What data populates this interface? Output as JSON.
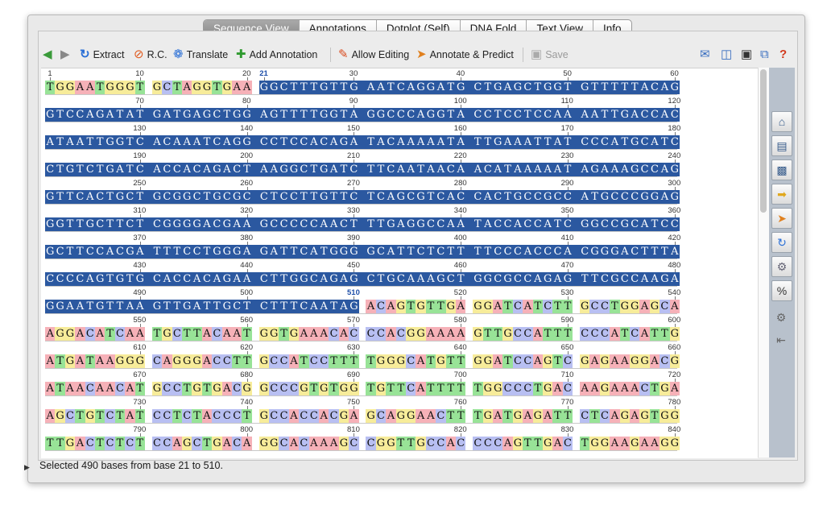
{
  "tabs": [
    {
      "label": "Sequence View",
      "active": true
    },
    {
      "label": "Annotations",
      "active": false
    },
    {
      "label": "Dotplot (Self)",
      "active": false
    },
    {
      "label": "DNA Fold",
      "active": false
    },
    {
      "label": "Text View",
      "active": false
    },
    {
      "label": "Info",
      "active": false
    }
  ],
  "toolbar": {
    "extract_label": "Extract",
    "rc_label": "R.C.",
    "translate_label": "Translate",
    "add_annotation_label": "Add Annotation",
    "allow_editing_label": "Allow Editing",
    "annotate_predict_label": "Annotate & Predict",
    "save_label": "Save",
    "icons": [
      "back-arrow-icon",
      "forward-arrow-icon",
      "extract-icon",
      "reverse-complement-icon",
      "translate-icon",
      "add-annotation-icon",
      "pencil-icon",
      "annotate-predict-icon",
      "save-icon",
      "mail-icon",
      "split-view-icon",
      "fit-view-icon",
      "new-window-icon",
      "help-icon"
    ]
  },
  "selection": {
    "start": 21,
    "end": 510
  },
  "nucleotide_colors": {
    "A": "#f6b1b8",
    "C": "#b8bff2",
    "G": "#f7ec9a",
    "T": "#98e397",
    "selected": "#2b58a0"
  },
  "rows": [
    {
      "start": 1,
      "seq": "TGGAATGGGTGCTAGGTGAAGGCTTTGTTGAATCAGGATGCTGAGCTGGTGTTTTTACAG"
    },
    {
      "start": 61,
      "seq": "GTCCAGATATGATGAGCTGGAGTTTTGGTAGGCCCAGGTACCTCCTCCAAAATTGACCAC"
    },
    {
      "start": 121,
      "seq": "ATAATTGGTCACAAATCAGGCCTCCACAGATACAAAAATATTGAAATTATCCCATGCATC"
    },
    {
      "start": 181,
      "seq": "CTGTCTGATCACCACAGACTAAGGCTGATCTTCAATAACAACATAAAAATAGAAAGCCAG"
    },
    {
      "start": 241,
      "seq": "GTTCACTGCTGCGGCTGCGCCTCCTTGTTCTCAGCGTCACCACTGCCGCCATGCCCGGAG"
    },
    {
      "start": 301,
      "seq": "GGTTGCTTCTCGGGGACGAAGCCCCCAACTTTGAGGCCAATACCACCATCGGCCGCATCC"
    },
    {
      "start": 361,
      "seq": "GCTTCCACGATTTCCTGGGAGATTCATGGGGCATTCTCTTTTCCCACCCACGGGACTTTA"
    },
    {
      "start": 421,
      "seq": "CCCCAGTGTGCACCACAGAACTTGGCAGAGCTGCAAAGCTGGCGCCAGAGTTCGCCAAGA"
    },
    {
      "start": 481,
      "seq": "GGAATGTTAAGTTGATTGCTCTTTCAATAGACAGTGTTGAGGATCATCTTGCCTGGAGCA"
    },
    {
      "start": 541,
      "seq": "AGGACATCAATGCTTACAATGGTGAAACACCCACGGAAAAGTTGCCATTTCCCATCATTG"
    },
    {
      "start": 601,
      "seq": "ATGATAAGGGCAGGGACCTTGCCATCCTTTTGGGCATGTTGGATCCAGTCGAGAAGGACG"
    },
    {
      "start": 661,
      "seq": "ATAACAACATGCCTGTGACGGCCCGTGTGGTGTTCATTTTTGGCCCTGACAAGAAACTGA"
    },
    {
      "start": 721,
      "seq": "AGCTGTCTATCCTCTACCCTGCCACCACGAGCAGGAACTTTGATGAGATTCTCAGAGTGG"
    },
    {
      "start": 781,
      "seq": "TTGACTCTCTCCAGCTGACAGGCACAAAGCCGGTTGCCACCCCAGTTGACTGGAAGAAGG"
    }
  ],
  "status": "Selected 490 bases from base 21 to 510."
}
